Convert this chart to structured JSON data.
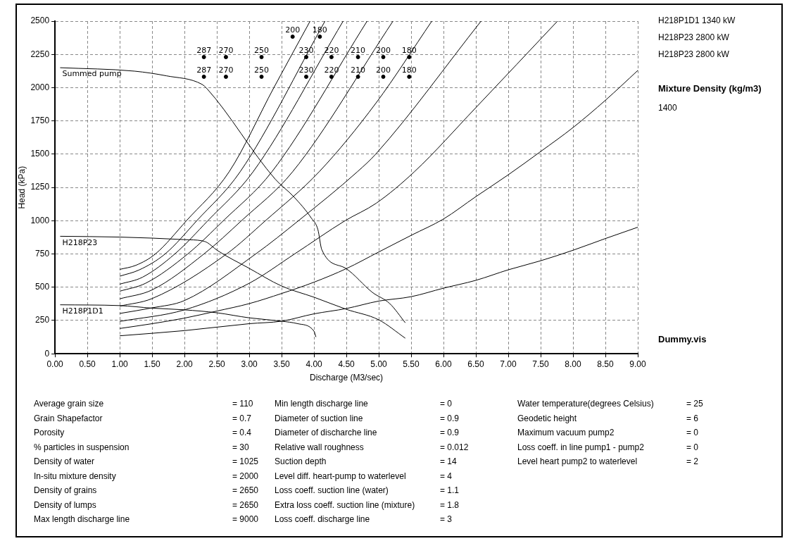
{
  "chart_data": {
    "type": "line",
    "xlabel": "Discharge (M3/sec)",
    "ylabel": "Head (kPa)",
    "xlim": [
      0,
      9
    ],
    "ylim": [
      0,
      2500
    ],
    "xticks": [
      {
        "value": 0,
        "label": "0.00"
      },
      {
        "value": 0.5,
        "label": "0.50"
      },
      {
        "value": 1,
        "label": "1.00"
      },
      {
        "value": 1.5,
        "label": "1.50"
      },
      {
        "value": 2,
        "label": "2.00"
      },
      {
        "value": 2.5,
        "label": "2.50"
      },
      {
        "value": 3,
        "label": "3.00"
      },
      {
        "value": 3.5,
        "label": "3.50"
      },
      {
        "value": 4,
        "label": "4.00"
      },
      {
        "value": 4.5,
        "label": "4.50"
      },
      {
        "value": 5,
        "label": "5.00"
      },
      {
        "value": 5.5,
        "label": "5.50"
      },
      {
        "value": 6,
        "label": "6.00"
      },
      {
        "value": 6.5,
        "label": "6.50"
      },
      {
        "value": 7,
        "label": "7.00"
      },
      {
        "value": 7.5,
        "label": "7.50"
      },
      {
        "value": 8,
        "label": "8.00"
      },
      {
        "value": 8.5,
        "label": "8.50"
      },
      {
        "value": 9,
        "label": "9.00"
      }
    ],
    "yticks": [
      0,
      250,
      500,
      750,
      1000,
      1250,
      1500,
      1750,
      2000,
      2250,
      2500
    ],
    "grid": true,
    "legend": false,
    "series": [
      {
        "name": "Summed pump",
        "color": "#000000",
        "x": [
          0.08,
          1.23,
          1.72,
          2.27,
          2.35,
          3.4,
          3.69,
          3.96,
          4.06,
          4.12,
          4.49,
          4.9,
          5.17,
          5.41
        ],
        "values": [
          2150,
          2124,
          2089,
          2025,
          1991,
          1313,
          1179,
          1019,
          934,
          783,
          642,
          462,
          377,
          233
        ]
      },
      {
        "name": "H218P23",
        "color": "#000000",
        "x": [
          0.08,
          1,
          2,
          2.27,
          2.35,
          2.5,
          3,
          3.5,
          4,
          4.5,
          5,
          5.41
        ],
        "values": [
          883,
          877,
          858,
          849,
          836,
          779,
          642,
          509,
          425,
          334,
          255,
          117
        ]
      },
      {
        "name": "H218P1D1",
        "color": "#000000",
        "x": [
          0.08,
          1,
          1.5,
          2,
          2.5,
          3,
          3.5,
          3.75,
          4,
          4.03
        ],
        "values": [
          368,
          362,
          343,
          330,
          308,
          270,
          245,
          226,
          170,
          126
        ]
      },
      {
        "color": "#000000",
        "x": [
          1,
          1.25,
          1.55,
          2.03,
          2.69,
          3.38,
          3.94
        ],
        "values": [
          634,
          665,
          750,
          1000,
          1368,
          2000,
          2500
        ]
      },
      {
        "color": "#000000",
        "x": [
          1,
          1.3,
          1.7,
          2.19,
          2.86,
          4.17
        ],
        "values": [
          583,
          630,
          750,
          1000,
          1368,
          2500
        ]
      },
      {
        "color": "#000000",
        "x": [
          1,
          1.35,
          1.85,
          2.36,
          3.06,
          4.45
        ],
        "values": [
          523,
          575,
          750,
          1000,
          1368,
          2500
        ]
      },
      {
        "color": "#000000",
        "x": [
          1,
          1.4,
          2.05,
          2.6,
          3.35,
          4.82
        ],
        "values": [
          470,
          530,
          750,
          1000,
          1368,
          2500
        ]
      },
      {
        "color": "#000000",
        "x": [
          1,
          1.5,
          2.3,
          2.88,
          3.67,
          5.22
        ],
        "values": [
          413,
          480,
          750,
          1000,
          1368,
          2500
        ]
      },
      {
        "color": "#000000",
        "x": [
          1,
          1.5,
          2.65,
          3.25,
          4.08,
          4.96,
          5.82
        ],
        "values": [
          358,
          415,
          750,
          1000,
          1368,
          1886,
          2500
        ]
      },
      {
        "color": "#000000",
        "x": [
          1,
          1.5,
          2,
          3.1,
          3.76,
          4.67,
          4.96,
          6.58
        ],
        "values": [
          303,
          345,
          400,
          750,
          1000,
          1368,
          1504,
          2500
        ]
      },
      {
        "color": "#000000",
        "x": [
          1,
          2,
          3,
          3.7,
          4.48,
          4.96,
          5.55,
          6.5,
          7.76
        ],
        "values": [
          243,
          330,
          530,
          750,
          1000,
          1131,
          1368,
          1850,
          2500
        ]
      },
      {
        "color": "#000000",
        "x": [
          1,
          1.5,
          2,
          2.5,
          3,
          3.5,
          4,
          4.5,
          5,
          5.5,
          6,
          6.5,
          7,
          7.5,
          8,
          8.5,
          9
        ],
        "values": [
          190,
          226,
          268,
          321,
          377,
          453,
          538,
          640,
          765,
          890,
          1013,
          1181,
          1345,
          1520,
          1700,
          1905,
          2129
        ]
      },
      {
        "color": "#000000",
        "x": [
          1,
          2,
          3,
          3.5,
          4,
          4.5,
          5,
          5.5,
          6,
          6.5,
          7,
          7.5,
          8,
          8.5,
          9
        ],
        "values": [
          135,
          174,
          226,
          245,
          300,
          340,
          396,
          429,
          493,
          552,
          631,
          699,
          778,
          866,
          951
        ]
      },
      {
        "type": "scatter",
        "marker": "circle",
        "color": "#000000",
        "x": [
          3.67,
          4.09
        ],
        "values": [
          2383,
          2383
        ]
      },
      {
        "type": "scatter",
        "marker": "circle",
        "color": "#000000",
        "x": [
          2.3,
          2.64,
          3.19,
          3.88,
          4.27,
          4.68,
          5.07,
          5.47
        ],
        "values": [
          2230,
          2230,
          2230,
          2230,
          2230,
          2230,
          2230,
          2230
        ]
      },
      {
        "type": "scatter",
        "marker": "circle",
        "color": "#000000",
        "x": [
          2.3,
          2.64,
          3.19,
          3.88,
          4.27,
          4.68,
          5.07,
          5.47
        ],
        "values": [
          2082,
          2082,
          2082,
          2082,
          2082,
          2082,
          2082,
          2082
        ]
      }
    ],
    "annotations": [
      "H218P1D1 1340 kW",
      "H218P23 2800 kW",
      "H218P23 2800 kW",
      "Mixture Density (kg/m3)",
      "1400",
      "Dummy.vis",
      "Average grain size",
      "= 110",
      "Grain Shapefactor",
      "= 0.7",
      "Porosity",
      "= 0.4",
      "% particles in suspension",
      "= 30",
      "Density of water",
      "= 1025",
      "In-situ mixture density",
      "= 2000",
      "Density of grains",
      "= 2650",
      "Density of lumps",
      "= 2650",
      "Max length discharge line",
      "= 9000",
      "Min length discharge line",
      "= 0",
      "Diameter of suction line",
      "= 0.9",
      "Diameter of discharche line",
      "= 0.9",
      "Relative wall roughness",
      "= 0.012",
      "Suction depth",
      "= 14",
      "Level diff. heart-pump to waterlevel",
      "= 4",
      "Loss coeff. suction line (water)",
      "= 1.1",
      "Extra loss coeff. suction line (mixture)",
      "= 1.8",
      "Loss coeff. discharge line",
      "= 3",
      "Water temperature(degrees Celsius)",
      "= 25",
      "Geodetic height",
      "= 6",
      "Maximum vacuum pump2",
      "= 0",
      "Loss coeff. in line pump1 - pump2",
      "= 0",
      "Level heart pump2 to waterlevel",
      "= 2",
      {
        "text": "200",
        "x": 3.67,
        "y": 2383
      },
      {
        "text": "180",
        "x": 4.09,
        "y": 2383
      },
      {
        "text": "287",
        "x": 2.3,
        "y": 2230
      },
      {
        "text": "270",
        "x": 2.64,
        "y": 2230
      },
      {
        "text": "250",
        "x": 3.19,
        "y": 2230
      },
      {
        "text": "230",
        "x": 3.88,
        "y": 2230
      },
      {
        "text": "220",
        "x": 4.27,
        "y": 2230
      },
      {
        "text": "210",
        "x": 4.68,
        "y": 2230
      },
      {
        "text": "200",
        "x": 5.07,
        "y": 2230
      },
      {
        "text": "180",
        "x": 5.47,
        "y": 2230
      },
      {
        "text": "287",
        "x": 2.3,
        "y": 2082
      },
      {
        "text": "270",
        "x": 2.64,
        "y": 2082
      },
      {
        "text": "250",
        "x": 3.19,
        "y": 2082
      },
      {
        "text": "230",
        "x": 3.88,
        "y": 2082
      },
      {
        "text": "220",
        "x": 4.27,
        "y": 2082
      },
      {
        "text": "210",
        "x": 4.68,
        "y": 2082
      },
      {
        "text": "200",
        "x": 5.07,
        "y": 2082
      },
      {
        "text": "180",
        "x": 5.47,
        "y": 2082
      }
    ]
  }
}
